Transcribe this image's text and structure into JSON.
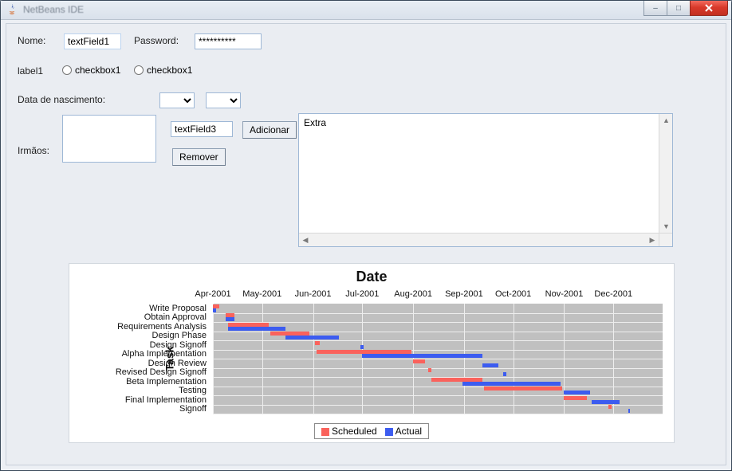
{
  "window": {
    "title": "NetBeans IDE",
    "controls": {
      "min": "–",
      "max": "□",
      "close": "×"
    }
  },
  "form": {
    "nome_label": "Nome:",
    "nome_value": "textField1",
    "password_label": "Password:",
    "password_value": "**********",
    "label1": "label1",
    "checkbox1_label": "checkbox1",
    "checkbox2_label": "checkbox1",
    "dob_label": "Data de nascimento:",
    "irmaos_label": "Irmãos:",
    "textfield3_value": "textField3",
    "btn_adicionar": "Adicionar",
    "btn_remover": "Remover",
    "textarea_value": "Extra"
  },
  "chart": {
    "type": "gantt",
    "x_title": "Date",
    "y_title": "Task",
    "background_plot": "#c0c0c0",
    "grid_color": "#eeeeee",
    "series": [
      {
        "name": "Scheduled",
        "color": "#fa625c"
      },
      {
        "name": "Actual",
        "color": "#3c5cf0"
      }
    ],
    "x_ticks": [
      "Apr-2001",
      "May-2001",
      "Jun-2001",
      "Jul-2001",
      "Aug-2001",
      "Sep-2001",
      "Oct-2001",
      "Nov-2001",
      "Dec-2001"
    ],
    "x_start": "2001-04-01",
    "x_end": "2001-12-31",
    "tasks": [
      {
        "name": "Write Proposal",
        "sched": [
          "2001-04-01",
          "2001-04-05"
        ],
        "actual": [
          "2001-04-01",
          "2001-04-03"
        ]
      },
      {
        "name": "Obtain Approval",
        "sched": [
          "2001-04-09",
          "2001-04-14"
        ],
        "actual": [
          "2001-04-09",
          "2001-04-14"
        ]
      },
      {
        "name": "Requirements Analysis",
        "sched": [
          "2001-04-10",
          "2001-05-05"
        ],
        "actual": [
          "2001-04-10",
          "2001-05-15"
        ]
      },
      {
        "name": "Design Phase",
        "sched": [
          "2001-05-06",
          "2001-05-30"
        ],
        "actual": [
          "2001-05-15",
          "2001-06-17"
        ]
      },
      {
        "name": "Design Signoff",
        "sched": [
          "2001-06-02",
          "2001-06-05"
        ],
        "actual": [
          "2001-06-30",
          "2001-07-02"
        ]
      },
      {
        "name": "Alpha Implementation",
        "sched": [
          "2001-06-03",
          "2001-07-31"
        ],
        "actual": [
          "2001-07-01",
          "2001-09-12"
        ]
      },
      {
        "name": "Design Review",
        "sched": [
          "2001-08-01",
          "2001-08-08"
        ],
        "actual": [
          "2001-09-12",
          "2001-09-22"
        ]
      },
      {
        "name": "Revised Design Signoff",
        "sched": [
          "2001-08-10",
          "2001-08-12"
        ],
        "actual": [
          "2001-09-25",
          "2001-09-27"
        ]
      },
      {
        "name": "Beta Implementation",
        "sched": [
          "2001-08-12",
          "2001-09-12"
        ],
        "actual": [
          "2001-08-31",
          "2001-10-30"
        ]
      },
      {
        "name": "Testing",
        "sched": [
          "2001-09-13",
          "2001-10-31"
        ],
        "actual": [
          "2001-11-01",
          "2001-11-17"
        ]
      },
      {
        "name": "Final Implementation",
        "sched": [
          "2001-11-01",
          "2001-11-15"
        ],
        "actual": [
          "2001-11-18",
          "2001-12-05"
        ]
      },
      {
        "name": "Signoff",
        "sched": [
          "2001-11-28",
          "2001-11-30"
        ],
        "actual": [
          "2001-12-10",
          "2001-12-11"
        ]
      }
    ]
  }
}
